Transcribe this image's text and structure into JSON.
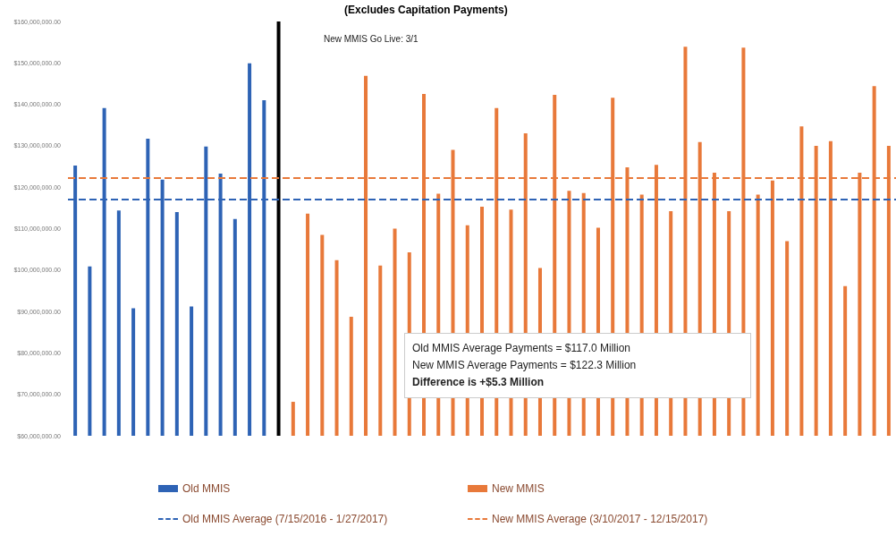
{
  "chart_data": {
    "type": "bar",
    "title": "(Excludes Capitation Payments)",
    "categories": [
      null,
      null,
      null,
      null,
      null,
      null,
      null,
      null,
      null,
      null,
      null,
      null,
      null,
      null,
      null,
      null,
      null,
      null,
      null,
      null,
      null,
      null,
      null,
      null,
      null,
      null,
      null,
      null,
      null,
      null,
      null,
      null,
      null,
      null,
      null,
      null,
      null,
      null,
      null,
      null,
      null,
      null,
      null,
      null,
      null,
      null,
      null,
      null,
      null,
      null,
      null,
      null,
      null,
      null,
      null,
      null,
      null
    ],
    "series": [
      {
        "name": "Old MMIS",
        "color": "#2e63b5",
        "values": [
          125200000,
          100900000,
          139100000,
          114400000,
          90800000,
          131700000,
          121800000,
          114000000,
          91200000,
          129800000,
          123300000,
          112300000,
          149900000,
          141000000,
          null,
          null,
          null,
          null,
          null,
          null,
          null,
          null,
          null,
          null,
          null,
          null,
          null,
          null,
          null,
          null,
          null,
          null,
          null,
          null,
          null,
          null,
          null,
          null,
          null,
          null,
          null,
          null,
          null,
          null,
          null,
          null,
          null,
          null,
          null,
          null,
          null,
          null,
          null,
          null,
          null,
          null,
          null
        ]
      },
      {
        "color": "#000000",
        "values": [
          null,
          null,
          null,
          null,
          null,
          null,
          null,
          null,
          null,
          null,
          null,
          null,
          null,
          null,
          160000000,
          null,
          null,
          null,
          null,
          null,
          null,
          null,
          null,
          null,
          null,
          null,
          null,
          null,
          null,
          null,
          null,
          null,
          null,
          null,
          null,
          null,
          null,
          null,
          null,
          null,
          null,
          null,
          null,
          null,
          null,
          null,
          null,
          null,
          null,
          null,
          null,
          null,
          null,
          null,
          null,
          null,
          null
        ]
      },
      {
        "name": "New MMIS",
        "color": "#e8793a",
        "values": [
          null,
          null,
          null,
          null,
          null,
          null,
          null,
          null,
          null,
          null,
          null,
          null,
          null,
          null,
          null,
          68200000,
          113600000,
          108500000,
          102400000,
          88700000,
          146900000,
          101100000,
          110000000,
          104300000,
          142500000,
          118400000,
          129000000,
          110800000,
          115300000,
          139100000,
          114600000,
          133000000,
          100500000,
          142300000,
          119100000,
          118600000,
          110200000,
          141600000,
          124800000,
          118200000,
          125400000,
          114200000,
          153900000,
          130900000,
          123500000,
          114200000,
          153700000,
          118200000,
          121600000,
          107000000,
          134700000,
          130000000,
          131100000,
          96100000,
          123500000,
          144400000,
          130000000
        ]
      }
    ],
    "ylim": [
      60000000,
      160000000
    ],
    "yticks": [
      {
        "value": 60000000,
        "label": "$60,000,000.00"
      },
      {
        "value": 70000000,
        "label": "$70,000,000.00"
      },
      {
        "value": 80000000,
        "label": "$80,000,000.00"
      },
      {
        "value": 90000000,
        "label": "$90,000,000.00"
      },
      {
        "value": 100000000,
        "label": "$100,000,000.00"
      },
      {
        "value": 110000000,
        "label": "$110,000,000.00"
      },
      {
        "value": 120000000,
        "label": "$120,000,000.00"
      },
      {
        "value": 130000000,
        "label": "$130,000,000.00"
      },
      {
        "value": 140000000,
        "label": "$140,000,000.00"
      },
      {
        "value": 150000000,
        "label": "$150,000,000.00"
      },
      {
        "value": 160000000,
        "label": "$160,000,000.00"
      }
    ],
    "ref_lines": [
      {
        "axis": "y",
        "value": 117000000,
        "label": "Old MMIS Average (7/15/2016 - 1/27/2017)",
        "color": "#2e63b5",
        "line_style": "dashed"
      },
      {
        "axis": "y",
        "value": 122300000,
        "label": "New MMIS Average (3/10/2017 - 12/15/2017)",
        "color": "#e8793a",
        "line_style": "dashed"
      }
    ],
    "annotations": [
      "New MMIS Go Live: 3/1",
      "Old MMIS Average Payments = $117.0 Million",
      "New MMIS Average Payments = $122.3 Million",
      "Difference is +$5.3 Million"
    ],
    "grid": false,
    "legend": "bottom"
  }
}
